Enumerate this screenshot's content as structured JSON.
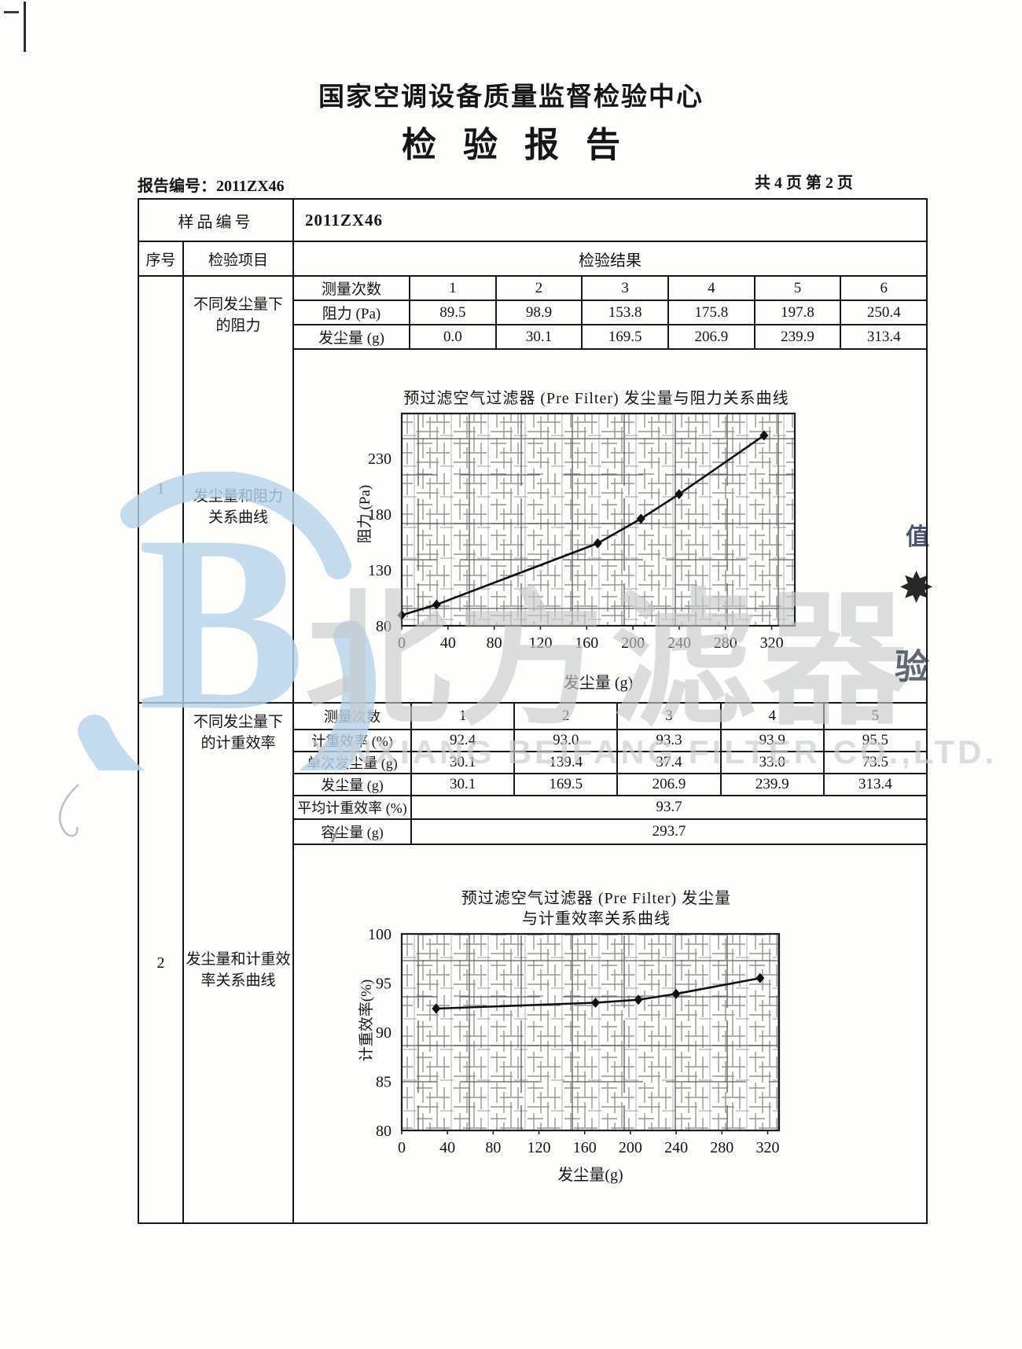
{
  "page": {
    "center_name": "国家空调设备质量监督检验中心",
    "doc_title": "检验报告",
    "report_no": "报告编号：2011ZX46",
    "page_info": "共 4 页 第 2 页"
  },
  "table": {
    "sample_label": "样品编号",
    "sample_value": "2011ZX46",
    "col_no": "序号",
    "col_item": "检验项目",
    "col_result": "检验结果"
  },
  "item1": {
    "no": "1",
    "cond_line1": "不同发尘量下",
    "cond_line2": "的阻力",
    "curve_line1": "发尘量和阻力",
    "curve_line2": "关系曲线",
    "meas_header": "测量次数",
    "cols": [
      "1",
      "2",
      "3",
      "4",
      "5",
      "6"
    ],
    "row_resistance_label": "阻力 (Pa)",
    "row_resistance": [
      "89.5",
      "98.9",
      "153.8",
      "175.8",
      "197.8",
      "250.4"
    ],
    "row_dust_label": "发尘量 (g)",
    "row_dust": [
      "0.0",
      "30.1",
      "169.5",
      "206.9",
      "239.9",
      "313.4"
    ]
  },
  "item2": {
    "no": "2",
    "cond_line1": "不同发尘量下",
    "cond_line2": "的计重效率",
    "curve_line1": "发尘量和计重效",
    "curve_line2": "率关系曲线",
    "meas_header": "测量次数",
    "cols": [
      "1",
      "2",
      "3",
      "4",
      "5"
    ],
    "row_eff_label": "计重效率 (%)",
    "row_eff": [
      "92.4",
      "93.0",
      "93.3",
      "93.9",
      "95.5"
    ],
    "row_single_label": "单次发尘量 (g)",
    "row_single": [
      "30.1",
      "139.4",
      "37.4",
      "33.0",
      "73.5"
    ],
    "row_total_label": "发尘量 (g)",
    "row_total": [
      "30.1",
      "169.5",
      "206.9",
      "239.9",
      "313.4"
    ],
    "row_avg_label": "平均计重效率 (%)",
    "row_avg_value": "93.7",
    "row_cap_label": "容尘量 (g)",
    "row_cap_value": "293.7"
  },
  "chart_data": [
    {
      "type": "line",
      "title": "预过滤空气过滤器 (Pre Filter) 发尘量与阻力关系曲线",
      "xlabel": "发尘量 (g)",
      "ylabel": "阻力 (Pa)",
      "x": [
        0,
        30.1,
        169.5,
        206.9,
        239.9,
        313.4
      ],
      "y": [
        89.5,
        98.9,
        153.8,
        175.8,
        197.8,
        250.4
      ],
      "xlim": [
        0,
        340
      ],
      "ylim": [
        80,
        270
      ],
      "xticks": [
        0,
        40,
        80,
        120,
        160,
        200,
        240,
        280,
        320
      ],
      "yticks": [
        80,
        130,
        180,
        230
      ],
      "marker": "diamond",
      "grid": true,
      "legend": "none"
    },
    {
      "type": "line",
      "title": "预过滤空气过滤器 (Pre Filter) 发尘量",
      "title2": "与计重效率关系曲线",
      "xlabel": "发尘量(g)",
      "ylabel": "计重效率(%)",
      "x": [
        30.1,
        169.5,
        206.9,
        239.9,
        313.4
      ],
      "y": [
        92.4,
        93.0,
        93.3,
        93.9,
        95.5
      ],
      "xlim": [
        0,
        330
      ],
      "ylim": [
        80,
        100
      ],
      "xticks": [
        0,
        40,
        80,
        120,
        160,
        200,
        240,
        280,
        320
      ],
      "yticks": [
        80,
        85,
        90,
        95,
        100
      ],
      "marker": "diamond",
      "grid": true,
      "legend": "none"
    }
  ],
  "watermark": {
    "cjk": "北方滤器",
    "latin": "XINXIANG BEIFANG FILTER CO.,LTD.",
    "logo_letter": "B",
    "blue": "#b7d3eb",
    "gray": "#c7c9ca"
  },
  "artifacts": {
    "right_mark1": "值",
    "right_mark2": "✸",
    "right_mark3": "验"
  }
}
